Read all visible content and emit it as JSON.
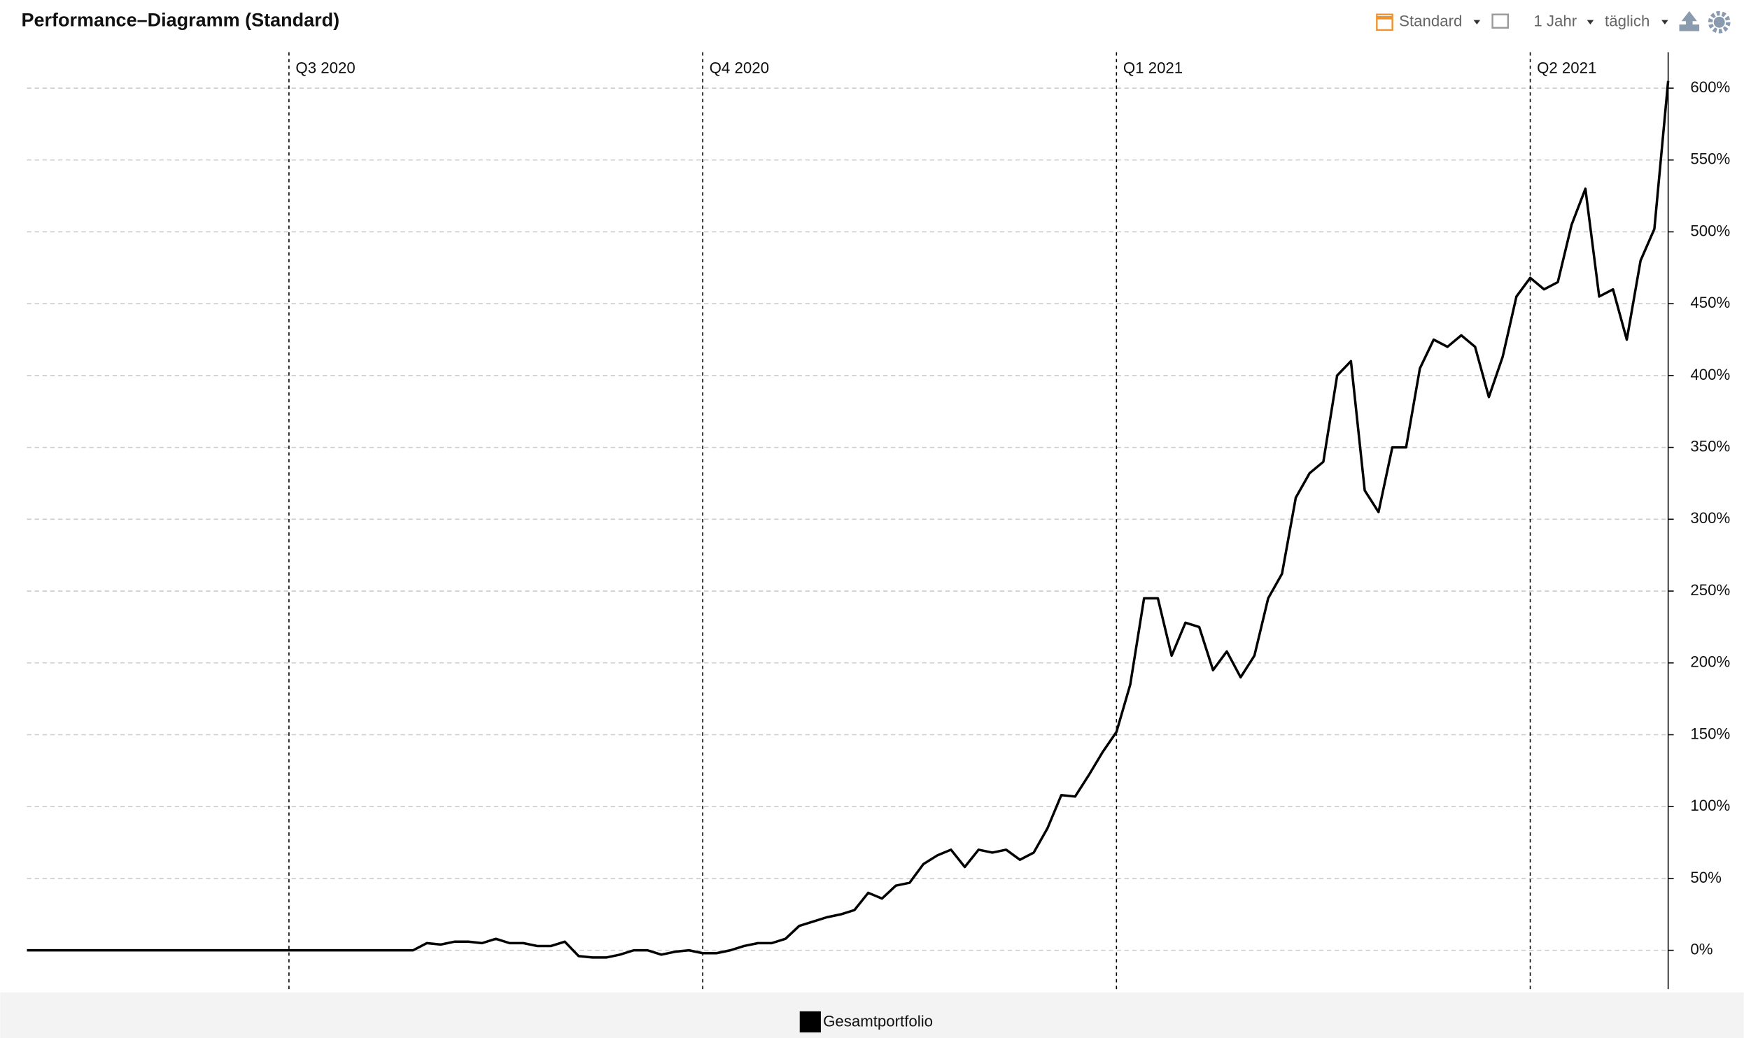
{
  "header": {
    "title": "Performance–Diagramm (Standard)",
    "controls": [
      "Standard",
      "1 Jahr",
      "täglich"
    ]
  },
  "chart_data": {
    "type": "line",
    "categories": [
      null,
      null,
      null,
      null,
      null,
      null,
      null,
      null,
      null,
      null,
      null,
      null,
      null,
      null,
      null,
      null,
      null,
      null,
      null,
      "Q3 2020",
      null,
      null,
      null,
      null,
      null,
      null,
      null,
      null,
      null,
      null,
      null,
      null,
      null,
      null,
      null,
      null,
      null,
      null,
      null,
      null,
      null,
      null,
      null,
      null,
      null,
      null,
      null,
      null,
      null,
      "Q4 2020",
      null,
      null,
      null,
      null,
      null,
      null,
      null,
      null,
      null,
      null,
      null,
      null,
      null,
      null,
      null,
      null,
      null,
      null,
      null,
      null,
      null,
      null,
      null,
      null,
      null,
      null,
      null,
      null,
      null,
      "Q1 2021",
      null,
      null,
      null,
      null,
      null,
      null,
      null,
      null,
      null,
      null,
      null,
      null,
      null,
      null,
      null,
      null,
      null,
      null,
      null,
      null,
      null,
      null,
      null,
      null,
      null,
      null,
      null,
      null,
      null,
      "Q2 2021",
      null,
      null,
      null,
      null,
      null,
      null,
      null,
      null,
      null,
      null
    ],
    "series": [
      {
        "name": "Gesamtportfolio",
        "color": "#000000",
        "values": [
          0,
          0,
          0,
          0,
          0,
          0,
          0,
          0,
          0,
          0,
          0,
          0,
          0,
          0,
          0,
          0,
          0,
          0,
          0,
          0,
          0,
          0,
          0,
          0,
          0,
          0,
          0,
          0,
          0,
          5,
          4,
          6,
          6,
          5,
          8,
          5,
          5,
          3,
          3,
          6,
          -4,
          -5,
          -5,
          -3,
          0,
          0,
          -3,
          -1,
          0,
          -2,
          -2,
          0,
          3,
          5,
          5,
          8,
          17,
          20,
          23,
          25,
          28,
          40,
          36,
          45,
          47,
          60,
          66,
          70,
          58,
          70,
          68,
          70,
          63,
          68,
          85,
          108,
          107,
          122,
          138,
          152,
          185,
          245,
          245,
          205,
          228,
          225,
          195,
          208,
          190,
          205,
          245,
          262,
          315,
          332,
          340,
          400,
          410,
          320,
          305,
          350,
          350,
          405,
          425,
          420,
          428,
          420,
          385,
          413,
          455,
          468,
          460,
          465,
          505,
          530,
          455,
          460,
          425,
          480,
          502,
          605
        ]
      }
    ],
    "ylim": [
      -27,
      625
    ],
    "yticks": [
      {
        "value": 0,
        "label": "0%"
      },
      {
        "value": 50,
        "label": "50%"
      },
      {
        "value": 100,
        "label": "100%"
      },
      {
        "value": 150,
        "label": "150%"
      },
      {
        "value": 200,
        "label": "200%"
      },
      {
        "value": 250,
        "label": "250%"
      },
      {
        "value": 300,
        "label": "300%"
      },
      {
        "value": 350,
        "label": "350%"
      },
      {
        "value": 400,
        "label": "400%"
      },
      {
        "value": 450,
        "label": "450%"
      },
      {
        "value": 500,
        "label": "500%"
      },
      {
        "value": 550,
        "label": "550%"
      },
      {
        "value": 600,
        "label": "600%"
      }
    ],
    "grid": true,
    "legend": "bottom"
  }
}
